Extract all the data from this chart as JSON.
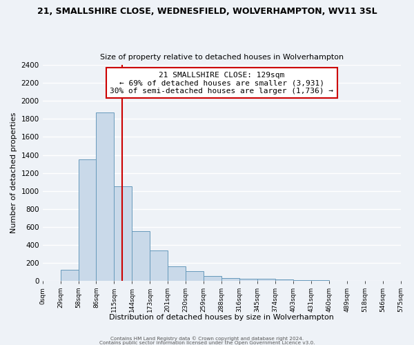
{
  "title": "21, SMALLSHIRE CLOSE, WEDNESFIELD, WOLVERHAMPTON, WV11 3SL",
  "subtitle": "Size of property relative to detached houses in Wolverhampton",
  "xlabel": "Distribution of detached houses by size in Wolverhampton",
  "ylabel": "Number of detached properties",
  "bin_labels": [
    "0sqm",
    "29sqm",
    "58sqm",
    "86sqm",
    "115sqm",
    "144sqm",
    "173sqm",
    "201sqm",
    "230sqm",
    "259sqm",
    "288sqm",
    "316sqm",
    "345sqm",
    "374sqm",
    "403sqm",
    "431sqm",
    "460sqm",
    "489sqm",
    "518sqm",
    "546sqm",
    "575sqm"
  ],
  "bar_heights": [
    0,
    125,
    1350,
    1875,
    1050,
    550,
    335,
    160,
    105,
    55,
    30,
    25,
    20,
    15,
    5,
    3,
    2,
    2,
    1,
    1
  ],
  "bar_color": "#c9d9e9",
  "bar_edge_color": "#6699bb",
  "vline_index": 4.45,
  "vline_color": "#cc0000",
  "annotation_line1": "21 SMALLSHIRE CLOSE: 129sqm",
  "annotation_line2": "← 69% of detached houses are smaller (3,931)",
  "annotation_line3": "30% of semi-detached houses are larger (1,736) →",
  "annotation_box_color": "#ffffff",
  "annotation_box_edge": "#cc0000",
  "ylim": [
    0,
    2400
  ],
  "yticks": [
    0,
    200,
    400,
    600,
    800,
    1000,
    1200,
    1400,
    1600,
    1800,
    2000,
    2200,
    2400
  ],
  "footer1": "Contains HM Land Registry data © Crown copyright and database right 2024.",
  "footer2": "Contains public sector information licensed under the Open Government Licence v3.0.",
  "bg_color": "#eef2f7",
  "grid_color": "#ffffff"
}
